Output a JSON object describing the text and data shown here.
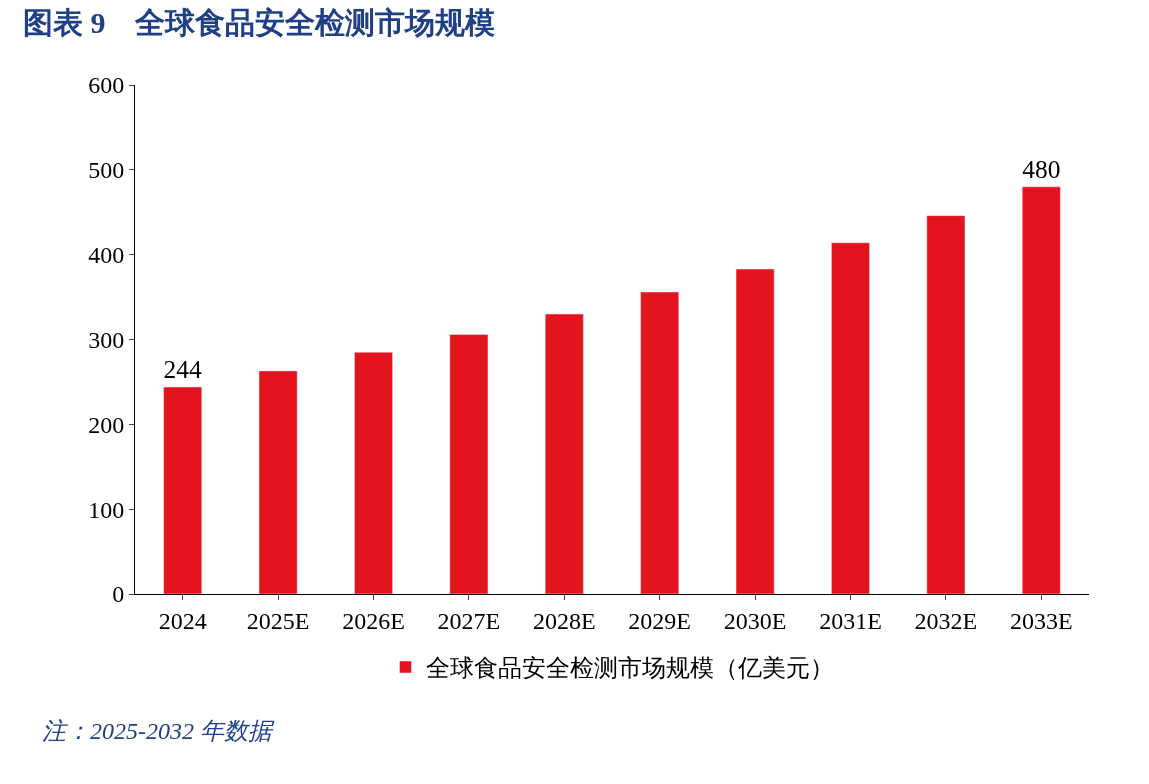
{
  "chart_data": {
    "type": "bar",
    "title": "图表 9　全球食品安全检测市场规模",
    "categories": [
      "2024",
      "2025E",
      "2026E",
      "2027E",
      "2028E",
      "2029E",
      "2030E",
      "2031E",
      "2032E",
      "2033E"
    ],
    "series": [
      {
        "name": "全球食品安全检测市场规模（亿美元）",
        "color": "#e3141e",
        "values": [
          244,
          263,
          285,
          306,
          330,
          356,
          383,
          414,
          446,
          480
        ],
        "value_labels": [
          "244",
          null,
          null,
          null,
          null,
          null,
          null,
          null,
          null,
          "480"
        ]
      }
    ],
    "ylim": [
      0,
      600
    ],
    "yticks": [
      0,
      100,
      200,
      300,
      400,
      500,
      600
    ],
    "grid": false,
    "legend": "bottom",
    "annotations": [
      "注：2025-2032 年数据"
    ]
  }
}
